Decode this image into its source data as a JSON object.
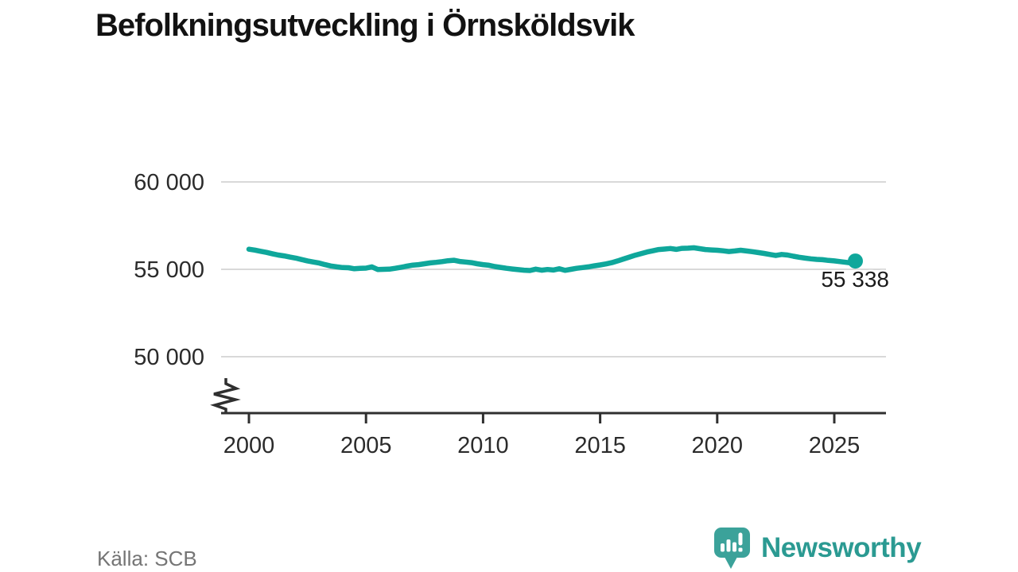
{
  "title": "Befolkningsutveckling i Örnsköldsvik",
  "source": "Källa: SCB",
  "branding": {
    "name": "Newsworthy",
    "wordmark_color": "#2b9a92",
    "icon": "newsworthy-speech-bubble-bar-chart-icon",
    "icon_color": "#3ba29a"
  },
  "chart_data": {
    "type": "line",
    "title": "Befolkningsutveckling i Örnsköldsvik",
    "xlabel": "",
    "ylabel": "",
    "grid": "horizontal-only",
    "axis_break": true,
    "legend": "none",
    "line_color": "#0fa79b",
    "grid_color": "#d9d9d9",
    "axis_color": "#2f2f2f",
    "xlim": [
      2000,
      2027.2
    ],
    "ylim": [
      50000,
      60000
    ],
    "xticks": [
      2000,
      2005,
      2010,
      2015,
      2020,
      2025
    ],
    "xtick_labels": [
      "2000",
      "2005",
      "2010",
      "2015",
      "2020",
      "2025"
    ],
    "yticks": [
      50000,
      55000,
      60000
    ],
    "ytick_labels": [
      "50 000",
      "55 000",
      "60 000"
    ],
    "x": [
      2000,
      2000.25,
      2000.5,
      2000.75,
      2001,
      2001.25,
      2001.5,
      2001.75,
      2002,
      2002.25,
      2002.5,
      2002.75,
      2003,
      2003.25,
      2003.5,
      2003.75,
      2004,
      2004.25,
      2004.5,
      2004.75,
      2005,
      2005.25,
      2005.5,
      2005.75,
      2006,
      2006.25,
      2006.5,
      2006.75,
      2007,
      2007.25,
      2007.5,
      2007.75,
      2008,
      2008.25,
      2008.5,
      2008.75,
      2009,
      2009.25,
      2009.5,
      2009.75,
      2010,
      2010.25,
      2010.5,
      2010.75,
      2011,
      2011.25,
      2011.5,
      2011.75,
      2012,
      2012.25,
      2012.5,
      2012.75,
      2013,
      2013.25,
      2013.5,
      2013.75,
      2014,
      2014.25,
      2014.5,
      2014.75,
      2015,
      2015.25,
      2015.5,
      2015.75,
      2016,
      2016.25,
      2016.5,
      2016.75,
      2017,
      2017.25,
      2017.5,
      2017.75,
      2018,
      2018.25,
      2018.5,
      2018.75,
      2019,
      2019.25,
      2019.5,
      2019.75,
      2020,
      2020.25,
      2020.5,
      2020.75,
      2021,
      2021.25,
      2021.5,
      2021.75,
      2022,
      2022.25,
      2022.5,
      2022.75,
      2023,
      2023.25,
      2023.5,
      2023.75,
      2024,
      2024.25,
      2024.5,
      2024.75,
      2025,
      2025.25,
      2025.5,
      2025.75,
      2025.9
    ],
    "values": [
      56150,
      56100,
      56030,
      55970,
      55890,
      55820,
      55770,
      55700,
      55640,
      55560,
      55480,
      55420,
      55360,
      55270,
      55190,
      55140,
      55100,
      55090,
      55030,
      55060,
      55070,
      55140,
      54990,
      55000,
      55010,
      55060,
      55120,
      55180,
      55240,
      55270,
      55320,
      55370,
      55400,
      55440,
      55490,
      55520,
      55450,
      55420,
      55380,
      55320,
      55270,
      55230,
      55160,
      55110,
      55060,
      55020,
      54980,
      54950,
      54930,
      55010,
      54950,
      54990,
      54960,
      55030,
      54940,
      55000,
      55060,
      55100,
      55140,
      55200,
      55250,
      55310,
      55380,
      55480,
      55590,
      55700,
      55810,
      55900,
      55990,
      56060,
      56130,
      56160,
      56190,
      56140,
      56200,
      56210,
      56230,
      56180,
      56130,
      56110,
      56090,
      56060,
      56020,
      56050,
      56090,
      56050,
      56010,
      55960,
      55910,
      55850,
      55790,
      55850,
      55820,
      55750,
      55690,
      55640,
      55600,
      55570,
      55550,
      55510,
      55480,
      55440,
      55400,
      55360,
      55338
    ],
    "last_point": {
      "x": 2025.9,
      "value": 55338,
      "label": "55 338"
    }
  }
}
